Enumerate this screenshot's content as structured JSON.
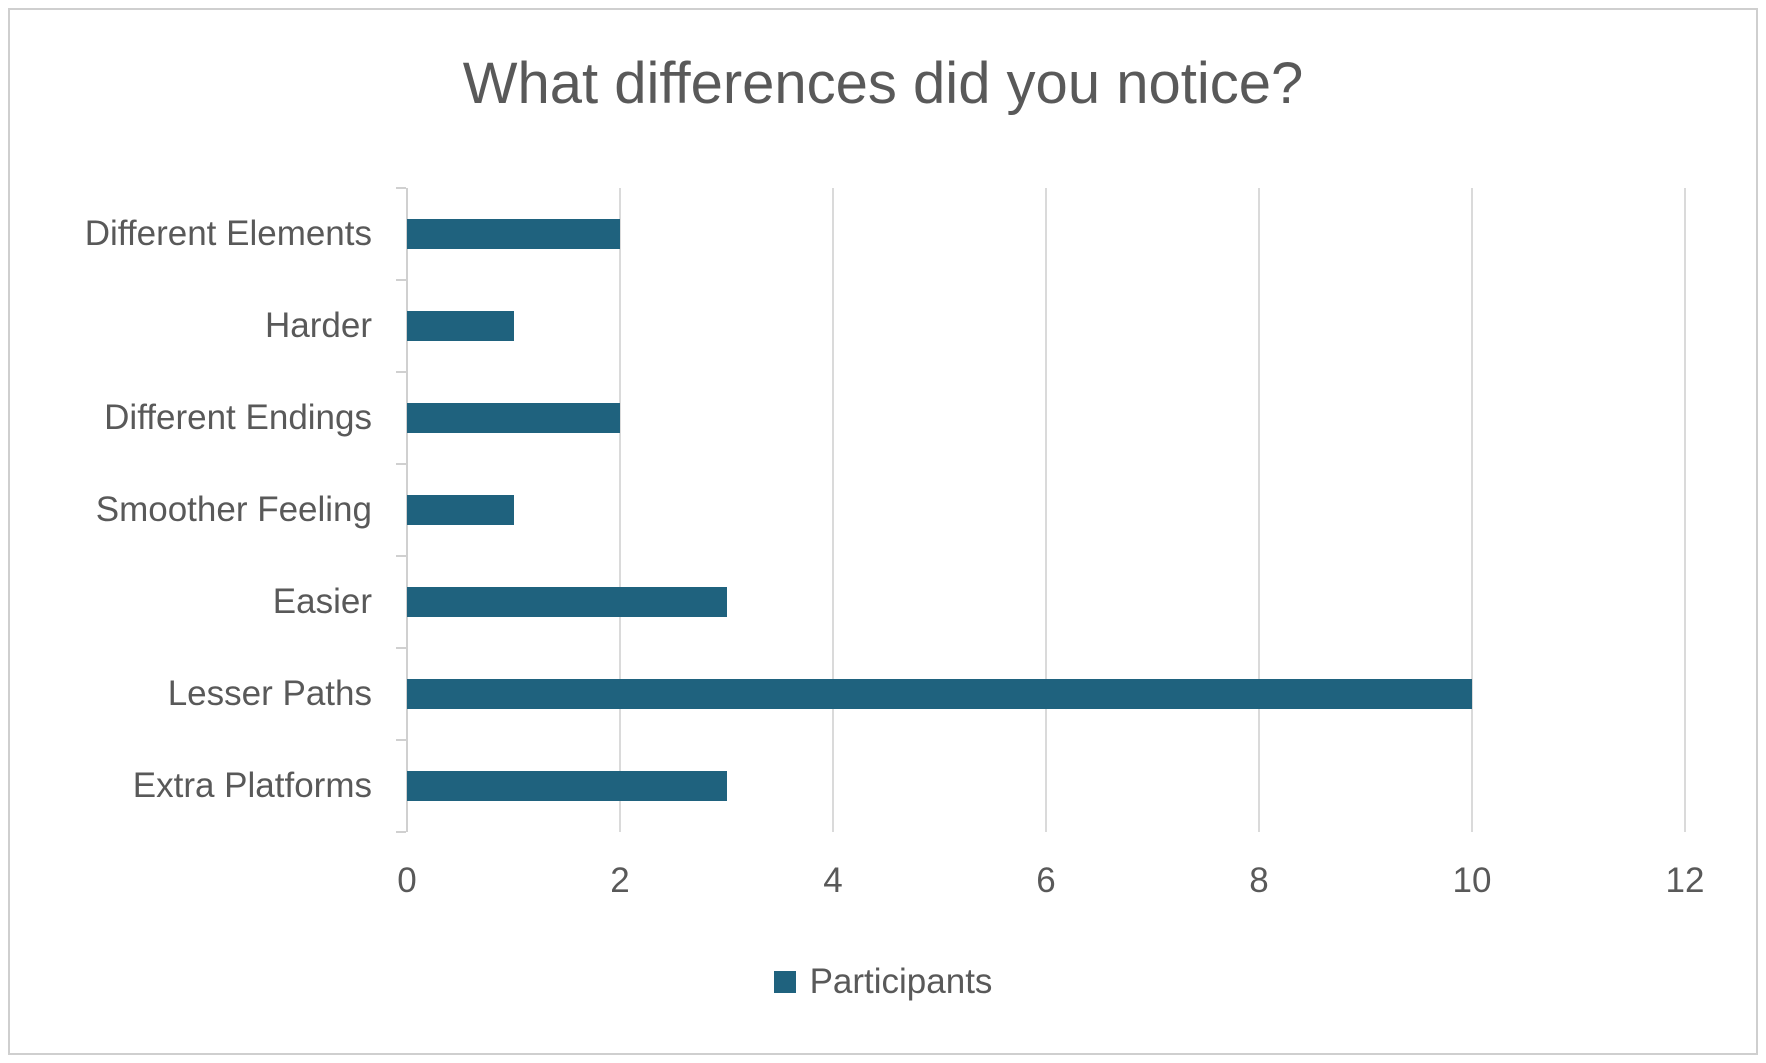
{
  "chart_data": {
    "type": "bar",
    "orientation": "horizontal",
    "title": "What differences did you notice?",
    "categories": [
      "Different Elements",
      "Harder",
      "Different Endings",
      "Smoother Feeling",
      "Easier",
      "Lesser Paths",
      "Extra Platforms"
    ],
    "series": [
      {
        "name": "Participants",
        "values": [
          2,
          1,
          2,
          1,
          3,
          10,
          3
        ]
      }
    ],
    "xlabel": "",
    "ylabel": "",
    "xlim": [
      0,
      12
    ],
    "x_ticks": [
      0,
      2,
      4,
      6,
      8,
      10,
      12
    ],
    "grid": "vertical-gridlines-on",
    "legend_position": "bottom-center",
    "colors": {
      "bar": "#1f627e",
      "text": "#595959",
      "gridline": "#dadada",
      "axis_line": "#d0d0d0",
      "frame_border": "#cfcfcf",
      "background": "#ffffff"
    }
  }
}
